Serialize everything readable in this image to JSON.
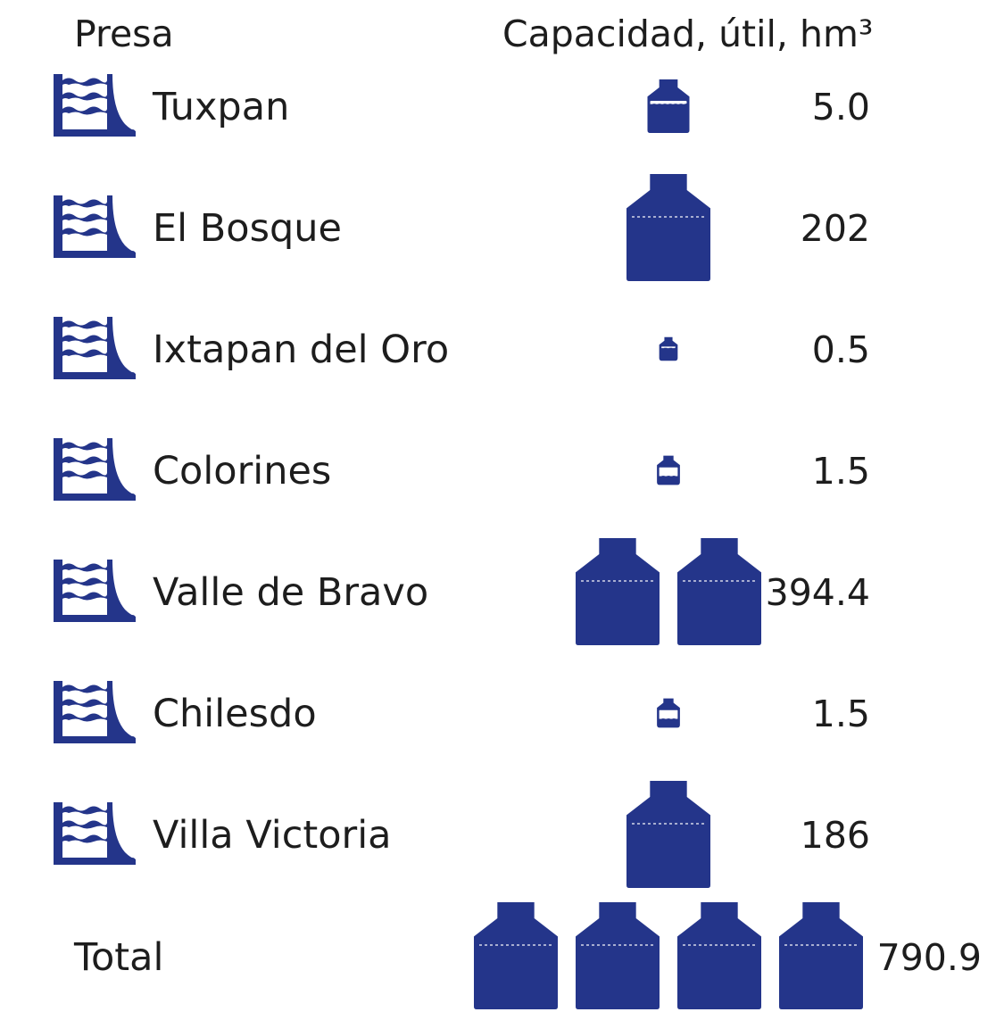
{
  "chart_data": {
    "type": "table",
    "columns": [
      "Presa",
      "Capacidad, útil, hm³"
    ],
    "rows": [
      {
        "name": "Tuxpan",
        "value_label": "5.0",
        "value": 5.0
      },
      {
        "name": "El Bosque",
        "value_label": "202",
        "value": 202
      },
      {
        "name": "Ixtapan del Oro",
        "value_label": "0.5",
        "value": 0.5
      },
      {
        "name": "Colorines",
        "value_label": "1.5",
        "value": 1.5
      },
      {
        "name": "Valle de Bravo",
        "value_label": "394.4",
        "value": 394.4
      },
      {
        "name": "Chilesdo",
        "value_label": "1.5",
        "value": 1.5
      },
      {
        "name": "Villa Victoria",
        "value_label": "186",
        "value": 186
      }
    ],
    "total": {
      "name": "Total",
      "value_label": "790.9",
      "value": 790.9
    }
  },
  "colors": {
    "icon": "#24358a",
    "text": "#1d1d1d",
    "background": "#ffffff"
  },
  "icons": {
    "dam": "dam-icon",
    "container": "water-container-icon"
  }
}
